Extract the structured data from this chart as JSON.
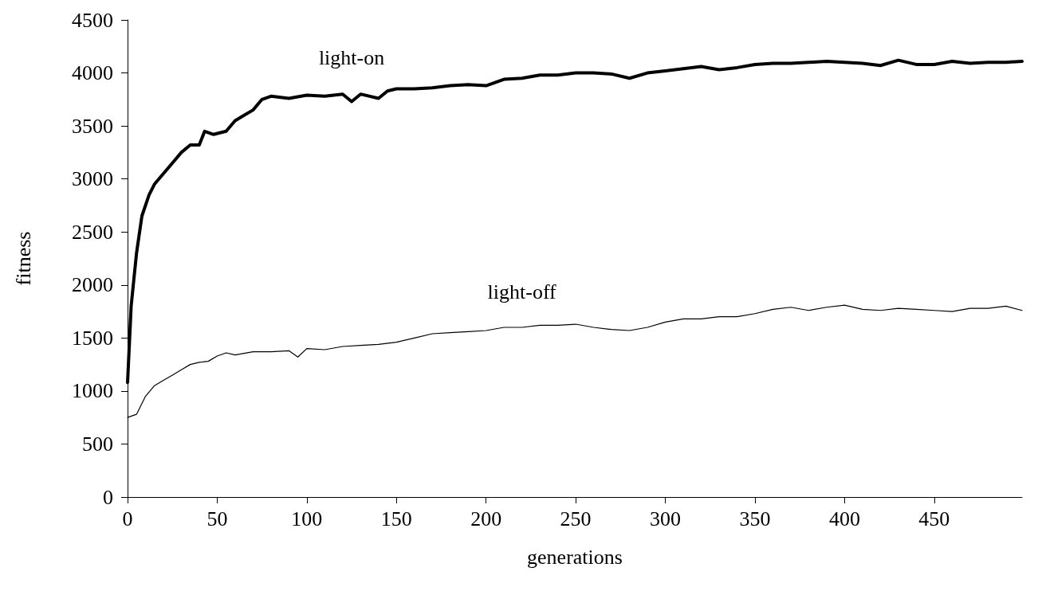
{
  "chart_data": {
    "type": "line",
    "xlabel": "generations",
    "ylabel": "fitness",
    "xlim": [
      0,
      499
    ],
    "xticks": [
      0,
      50,
      100,
      150,
      200,
      250,
      300,
      350,
      400,
      450
    ],
    "ylim": [
      0,
      4500
    ],
    "yticks": [
      0,
      500,
      1000,
      1500,
      2000,
      2500,
      3000,
      3500,
      4000,
      4500
    ],
    "grid": false,
    "legend": false,
    "marker": "none",
    "line_style": "solid",
    "series": [
      {
        "name": "light-on",
        "color": "#000000",
        "x": [
          0,
          2,
          5,
          8,
          12,
          15,
          20,
          25,
          30,
          35,
          40,
          43,
          48,
          55,
          60,
          65,
          70,
          75,
          80,
          90,
          100,
          110,
          120,
          125,
          130,
          140,
          145,
          150,
          160,
          170,
          180,
          190,
          200,
          210,
          220,
          230,
          240,
          250,
          260,
          270,
          280,
          290,
          300,
          310,
          320,
          330,
          340,
          350,
          360,
          370,
          380,
          390,
          400,
          410,
          420,
          430,
          440,
          450,
          460,
          470,
          480,
          490,
          499
        ],
        "values": [
          1080,
          1800,
          2300,
          2650,
          2850,
          2950,
          3050,
          3150,
          3250,
          3320,
          3320,
          3450,
          3420,
          3450,
          3550,
          3600,
          3650,
          3750,
          3780,
          3760,
          3790,
          3780,
          3800,
          3730,
          3800,
          3760,
          3830,
          3850,
          3850,
          3860,
          3880,
          3890,
          3880,
          3940,
          3950,
          3980,
          3980,
          4000,
          4000,
          3990,
          3950,
          4000,
          4020,
          4040,
          4060,
          4030,
          4050,
          4080,
          4090,
          4090,
          4100,
          4110,
          4100,
          4090,
          4070,
          4120,
          4080,
          4080,
          4110,
          4090,
          4100,
          4100,
          4110
        ]
      },
      {
        "name": "light-off",
        "color": "#000000",
        "x": [
          0,
          5,
          10,
          15,
          20,
          25,
          30,
          35,
          40,
          45,
          50,
          55,
          60,
          70,
          80,
          90,
          95,
          100,
          110,
          120,
          130,
          140,
          150,
          160,
          170,
          180,
          190,
          200,
          210,
          220,
          230,
          240,
          250,
          260,
          270,
          280,
          290,
          300,
          310,
          320,
          330,
          340,
          350,
          360,
          370,
          380,
          390,
          400,
          410,
          420,
          430,
          440,
          450,
          460,
          470,
          480,
          490,
          499
        ],
        "values": [
          750,
          780,
          950,
          1050,
          1100,
          1150,
          1200,
          1250,
          1270,
          1280,
          1330,
          1360,
          1340,
          1370,
          1370,
          1380,
          1320,
          1400,
          1390,
          1420,
          1430,
          1440,
          1460,
          1500,
          1540,
          1550,
          1560,
          1570,
          1600,
          1600,
          1620,
          1620,
          1630,
          1600,
          1580,
          1570,
          1600,
          1650,
          1680,
          1680,
          1700,
          1700,
          1730,
          1770,
          1790,
          1760,
          1790,
          1810,
          1770,
          1760,
          1780,
          1770,
          1760,
          1750,
          1780,
          1780,
          1800,
          1760
        ]
      }
    ]
  }
}
